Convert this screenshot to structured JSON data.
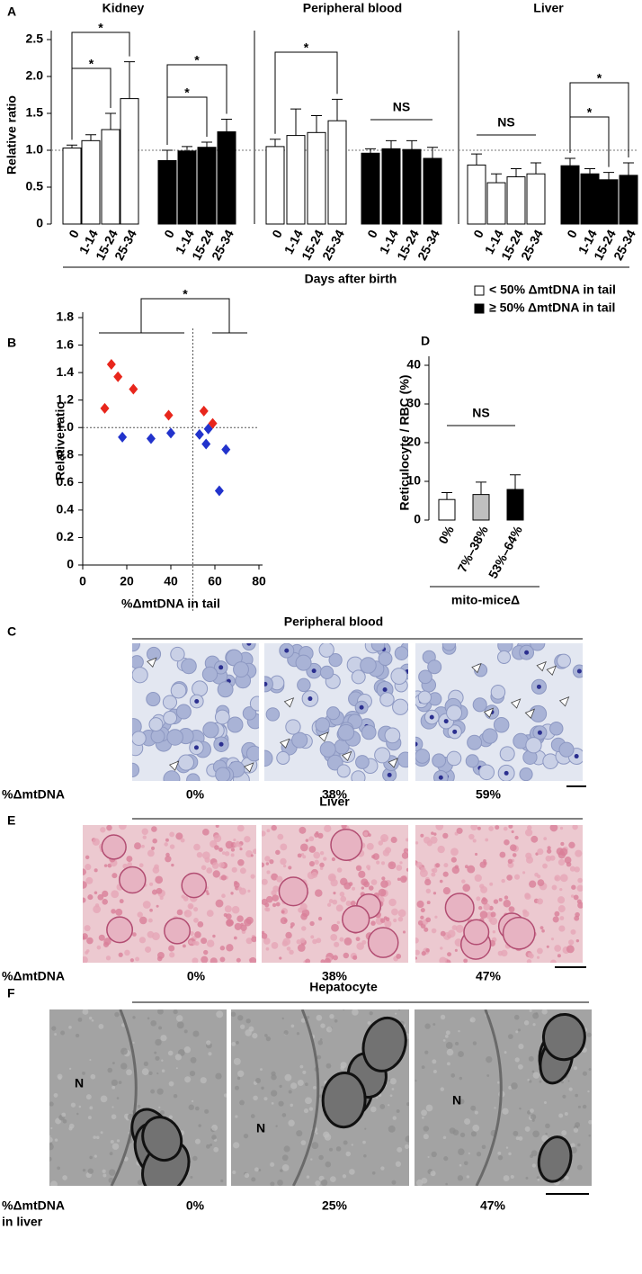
{
  "panel_labels": [
    "A",
    "B",
    "C",
    "D",
    "E",
    "F"
  ],
  "chart_data": [
    {
      "type": "bar",
      "title": "Kidney",
      "ylabel": "Relative ratio",
      "categories": [
        "0",
        "1-14",
        "15-24",
        "25-34"
      ],
      "ylim": [
        0,
        2.5
      ],
      "yticks": [
        0,
        0.5,
        {
          "value": 1,
          "label": "1.0"
        },
        1.5,
        {
          "value": 2,
          "label": "2.0"
        },
        2.5
      ],
      "refline": 1,
      "series": [
        {
          "name": "< 50% ΔmtDNA in tail",
          "color": "#ffffff",
          "values": [
            1.03,
            1.13,
            1.28,
            1.7
          ],
          "errors": [
            0.04,
            0.08,
            0.22,
            0.5
          ]
        },
        {
          "name": "≥ 50% ΔmtDNA in tail",
          "color": "#000000",
          "values": [
            0.86,
            0.99,
            1.04,
            1.25
          ],
          "errors": [
            0.14,
            0.06,
            0.07,
            0.17
          ]
        }
      ],
      "annotations": [
        "*",
        "*",
        "*",
        "*"
      ]
    },
    {
      "type": "bar",
      "title": "Peripheral  blood",
      "xlabel": "Days after birth",
      "categories": [
        "0",
        "1-14",
        "15-24",
        "25-34"
      ],
      "ylim": [
        0,
        2.5
      ],
      "refline": 1,
      "series": [
        {
          "color": "#ffffff",
          "values": [
            1.05,
            1.2,
            1.24,
            1.4
          ],
          "errors": [
            0.1,
            0.36,
            0.23,
            0.29
          ]
        },
        {
          "color": "#000000",
          "values": [
            0.96,
            1.02,
            1.01,
            0.89
          ],
          "errors": [
            0.06,
            0.11,
            0.12,
            0.15
          ]
        }
      ],
      "annotations": [
        "*",
        "NS"
      ]
    },
    {
      "type": "bar",
      "title": "Liver",
      "categories": [
        "0",
        "1-14",
        "15-24",
        "25-34"
      ],
      "ylim": [
        0,
        2.5
      ],
      "refline": 1,
      "series": [
        {
          "color": "#ffffff",
          "values": [
            0.8,
            0.56,
            0.64,
            0.68
          ],
          "errors": [
            0.15,
            0.12,
            0.11,
            0.15
          ]
        },
        {
          "color": "#000000",
          "values": [
            0.79,
            0.68,
            0.6,
            0.66
          ],
          "errors": [
            0.1,
            0.07,
            0.1,
            0.17
          ]
        }
      ],
      "annotations": [
        "NS",
        "*",
        "*"
      ]
    },
    {
      "type": "scatter",
      "xlabel": "%ΔmtDNA in tail",
      "ylabel": "Relative ratio",
      "xlim": [
        0,
        80
      ],
      "xticks": [
        0,
        20,
        40,
        60,
        80
      ],
      "ylim": [
        0,
        1.8
      ],
      "yticks": [
        0,
        0.2,
        0.4,
        0.6,
        0.8,
        {
          "value": 1,
          "label": "1.0"
        },
        1.2,
        1.4,
        1.6,
        1.8
      ],
      "hline": 1,
      "vline": 50,
      "series": [
        {
          "color": "#e8261c",
          "x": [
            10,
            13,
            16,
            23,
            39,
            55,
            59
          ],
          "values": [
            1.14,
            1.46,
            1.37,
            1.28,
            1.09,
            1.12,
            1.03
          ]
        },
        {
          "color": "#2233cc",
          "x": [
            18,
            31,
            40,
            53,
            57,
            56,
            65,
            62
          ],
          "values": [
            0.93,
            0.92,
            0.96,
            0.95,
            0.99,
            0.88,
            0.84,
            0.54
          ]
        }
      ],
      "annotations": [
        "*"
      ]
    },
    {
      "type": "bar",
      "ylabel": "Reticulocyte / RBC (%)",
      "xlabel": "mito-miceΔ",
      "categories": [
        "0%",
        "7%–38%",
        "53%–64%"
      ],
      "ylim": [
        0,
        40
      ],
      "yticks": [
        0,
        10,
        20,
        30,
        40
      ],
      "series": [
        {
          "colors": [
            "#ffffff",
            "#bfbfbf",
            "#000000"
          ],
          "values": [
            5.3,
            6.6,
            7.9
          ],
          "errors": [
            1.8,
            3.2,
            3.8
          ]
        }
      ],
      "annotations": [
        "NS"
      ]
    }
  ],
  "micrographs": [
    {
      "title": "Peripheral blood",
      "row_label": [
        "%ΔmtDNA"
      ],
      "labels": [
        "0%",
        "38%",
        "59%"
      ]
    },
    {
      "title": "Liver",
      "row_label": [
        "%ΔmtDNA"
      ],
      "labels": [
        "0%",
        "38%",
        "47%"
      ]
    },
    {
      "title": "Hepatocyte",
      "row_label": [
        "%ΔmtDNA",
        "in liver"
      ],
      "labels": [
        "0%",
        "25%",
        "47%"
      ],
      "nucleus_label": "N"
    }
  ]
}
